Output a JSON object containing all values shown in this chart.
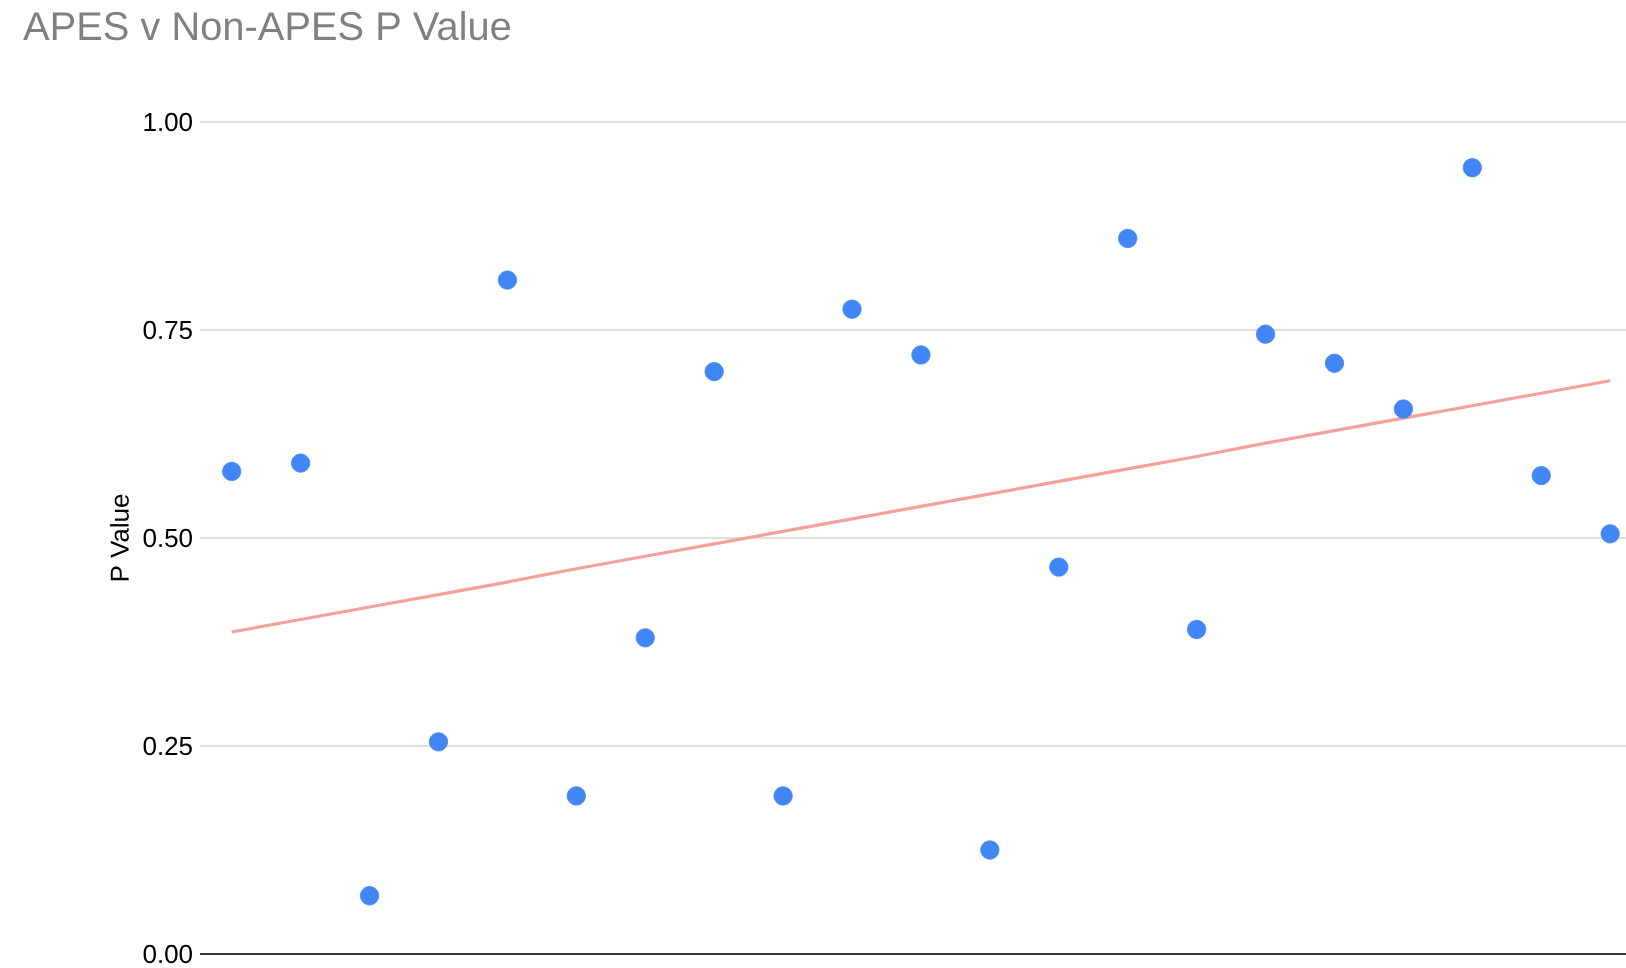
{
  "chart_data": {
    "type": "scatter",
    "title": "APES v Non-APES P Value",
    "ylabel": "P Value",
    "categories": [
      null,
      null,
      null,
      null,
      null,
      null,
      null,
      null,
      null,
      null,
      null,
      null,
      null,
      null,
      null,
      null,
      null,
      null,
      null,
      null,
      null
    ],
    "series": [
      {
        "color": "#4285f4",
        "marker": "circle",
        "values": [
          0.58,
          0.59,
          0.07,
          0.255,
          0.81,
          0.19,
          0.38,
          0.7,
          0.19,
          0.775,
          0.72,
          0.125,
          0.465,
          0.86,
          0.39,
          0.745,
          0.71,
          0.655,
          0.945,
          0.575,
          0.505
        ]
      },
      {
        "type": "line",
        "color": "#f4a19c",
        "line_style": "solid",
        "values": [
          0.387,
          0.402,
          0.417,
          0.432,
          0.447,
          0.463,
          0.478,
          0.493,
          0.508,
          0.523,
          0.538,
          0.553,
          0.568,
          0.583,
          0.598,
          0.614,
          0.629,
          0.644,
          0.659,
          0.674,
          0.689
        ]
      }
    ],
    "ylim": [
      0,
      1
    ],
    "yticks": [
      {
        "value": 0,
        "label": "0.00"
      },
      {
        "value": 0.25,
        "label": "0.25"
      },
      {
        "value": 0.5,
        "label": "0.50"
      },
      {
        "value": 0.75,
        "label": "0.75"
      },
      {
        "value": 1,
        "label": "1.00"
      }
    ],
    "grid": "y",
    "tick_labels": "y"
  }
}
